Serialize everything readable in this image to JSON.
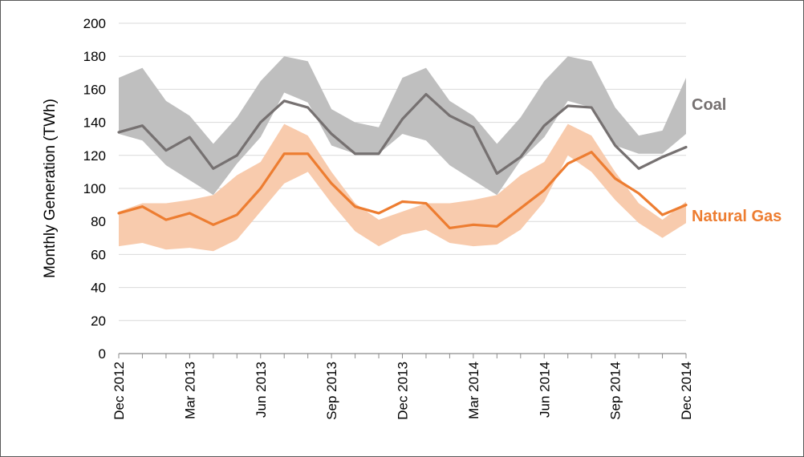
{
  "chart_data": {
    "type": "line",
    "xlabel": "",
    "ylabel": "Monthly Generation (TWh)",
    "ylim": [
      0,
      200
    ],
    "yticks": [
      0,
      20,
      40,
      60,
      80,
      100,
      120,
      140,
      160,
      180,
      200
    ],
    "grid": true,
    "x": [
      "Dec 2012",
      "Jan 2013",
      "Feb 2013",
      "Mar 2013",
      "Apr 2013",
      "May 2013",
      "Jun 2013",
      "Jul 2013",
      "Aug 2013",
      "Sep 2013",
      "Oct 2013",
      "Nov 2013",
      "Dec 2013",
      "Jan 2014",
      "Feb 2014",
      "Mar 2014",
      "Apr 2014",
      "May 2014",
      "Jun 2014",
      "Jul 2014",
      "Aug 2014",
      "Sep 2014",
      "Oct 2014",
      "Nov 2014",
      "Dec 2014"
    ],
    "x_tick_labels": [
      "Dec 2012",
      "Mar 2013",
      "Jun 2013",
      "Sep 2013",
      "Dec 2013",
      "Mar 2014",
      "Jun 2014",
      "Sep 2014",
      "Dec 2014"
    ],
    "x_tick_indices": [
      0,
      3,
      6,
      9,
      12,
      15,
      18,
      21,
      24
    ],
    "series": [
      {
        "name": "Coal",
        "color": "#767171",
        "band_color": "#bfbfbf",
        "values": [
          134,
          138,
          123,
          131,
          112,
          120,
          140,
          153,
          149,
          133,
          121,
          121,
          142,
          157,
          144,
          137,
          109,
          119,
          138,
          150,
          149,
          126,
          112,
          119,
          125
        ],
        "band_low": [
          133,
          129,
          114,
          105,
          96,
          115,
          131,
          158,
          152,
          126,
          121,
          121,
          133,
          129,
          114,
          105,
          96,
          117,
          131,
          153,
          149,
          126,
          121,
          121,
          133
        ],
        "band_high": [
          167,
          173,
          153,
          144,
          127,
          143,
          165,
          180,
          177,
          148,
          140,
          137,
          167,
          173,
          153,
          144,
          127,
          143,
          165,
          180,
          177,
          149,
          132,
          135,
          167
        ]
      },
      {
        "name": "Natural Gas",
        "color": "#ed7d31",
        "band_color": "#f8cbad",
        "values": [
          85,
          89,
          81,
          85,
          78,
          84,
          100,
          121,
          121,
          103,
          89,
          85,
          92,
          91,
          76,
          78,
          77,
          88,
          99,
          115,
          122,
          106,
          97,
          84,
          90
        ],
        "band_low": [
          65,
          67,
          63,
          64,
          62,
          69,
          86,
          103,
          110,
          91,
          74,
          65,
          72,
          75,
          67,
          65,
          66,
          75,
          92,
          120,
          110,
          93,
          79,
          70,
          79
        ],
        "band_high": [
          86,
          91,
          91,
          93,
          96,
          108,
          116,
          139,
          132,
          110,
          91,
          81,
          86,
          91,
          91,
          93,
          96,
          108,
          116,
          139,
          132,
          110,
          91,
          81,
          92
        ]
      }
    ]
  }
}
